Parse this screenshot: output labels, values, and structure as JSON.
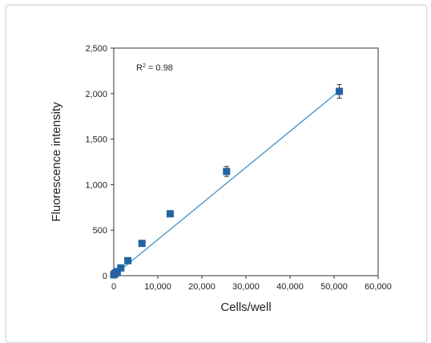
{
  "chart_data": {
    "type": "scatter",
    "title": "",
    "xlabel": "Cells/well",
    "ylabel": "Fluorescence intensity",
    "xlim": [
      0,
      60000
    ],
    "ylim": [
      0,
      2500
    ],
    "x_ticks": [
      "0",
      "10,000",
      "20,000",
      "30,000",
      "40,000",
      "50,000",
      "60,000"
    ],
    "y_ticks": [
      "0",
      "500",
      "1,000",
      "1,500",
      "2,000",
      "2,500"
    ],
    "grid": false,
    "legend": "none",
    "annotation": {
      "prefix": "R",
      "sup": "2",
      "suffix": " = 0.98"
    },
    "series": [
      {
        "x": [
          0,
          200,
          400,
          800,
          1600,
          3200,
          6400,
          12800,
          25600,
          51200
        ],
        "y": [
          10,
          20,
          30,
          45,
          85,
          165,
          355,
          680,
          1145,
          2025
        ],
        "error": [
          0,
          0,
          0,
          0,
          0,
          0,
          0,
          0,
          55,
          75
        ]
      }
    ],
    "trendline": {
      "x": [
        0,
        51200
      ],
      "y": [
        0,
        2030
      ]
    },
    "colors": {
      "marker": "#2463a0",
      "trendline": "#4d97c7",
      "axis": "#333333"
    }
  }
}
